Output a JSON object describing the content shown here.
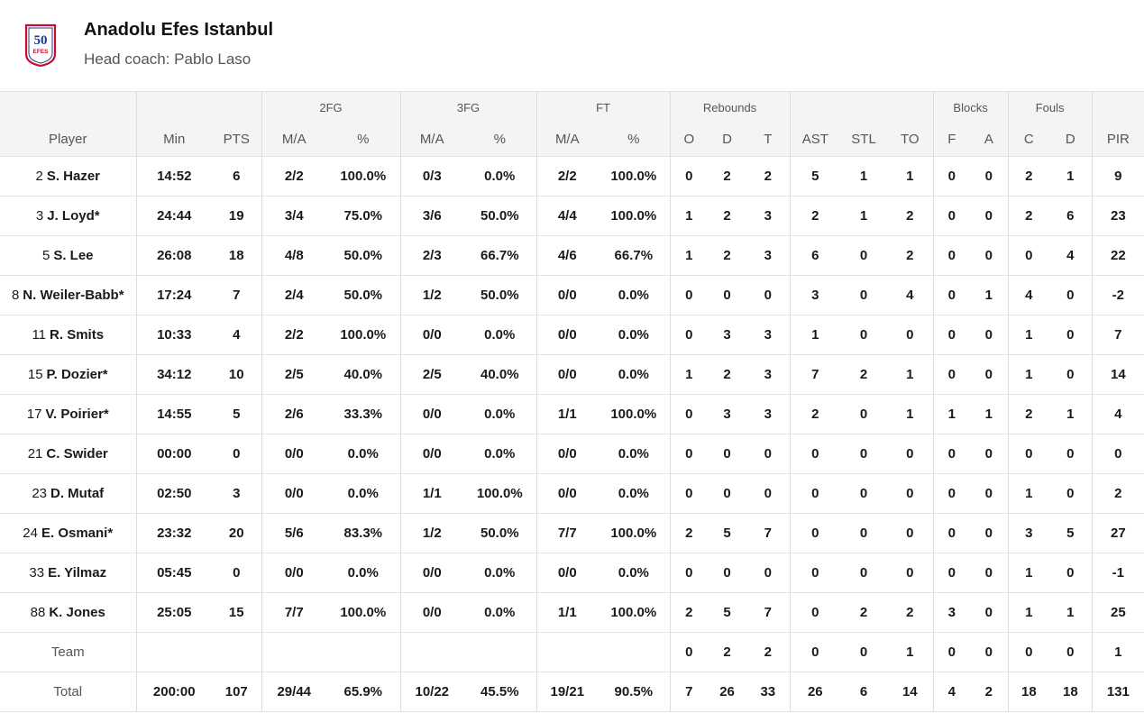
{
  "team": {
    "name": "Anadolu Efes Istanbul",
    "coach": "Head coach: Pablo Laso",
    "logo_text_top": "50",
    "logo_text_bottom": "EFES"
  },
  "groups": {
    "fg2": "2FG",
    "fg3": "3FG",
    "ft": "FT",
    "rebounds": "Rebounds",
    "blocks": "Blocks",
    "fouls": "Fouls"
  },
  "columns": [
    "Player",
    "Min",
    "PTS",
    "M/A",
    "%",
    "M/A",
    "%",
    "M/A",
    "%",
    "O",
    "D",
    "T",
    "AST",
    "STL",
    "TO",
    "F",
    "A",
    "C",
    "D",
    "PIR"
  ],
  "players": [
    {
      "num": "2",
      "name": "S. Hazer",
      "stats": [
        "14:52",
        "6",
        "2/2",
        "100.0%",
        "0/3",
        "0.0%",
        "2/2",
        "100.0%",
        "0",
        "2",
        "2",
        "5",
        "1",
        "1",
        "0",
        "0",
        "2",
        "1",
        "9"
      ]
    },
    {
      "num": "3",
      "name": "J. Loyd*",
      "stats": [
        "24:44",
        "19",
        "3/4",
        "75.0%",
        "3/6",
        "50.0%",
        "4/4",
        "100.0%",
        "1",
        "2",
        "3",
        "2",
        "1",
        "2",
        "0",
        "0",
        "2",
        "6",
        "23"
      ]
    },
    {
      "num": "5",
      "name": "S. Lee",
      "stats": [
        "26:08",
        "18",
        "4/8",
        "50.0%",
        "2/3",
        "66.7%",
        "4/6",
        "66.7%",
        "1",
        "2",
        "3",
        "6",
        "0",
        "2",
        "0",
        "0",
        "0",
        "4",
        "22"
      ]
    },
    {
      "num": "8",
      "name": "N. Weiler-Babb*",
      "stats": [
        "17:24",
        "7",
        "2/4",
        "50.0%",
        "1/2",
        "50.0%",
        "0/0",
        "0.0%",
        "0",
        "0",
        "0",
        "3",
        "0",
        "4",
        "0",
        "1",
        "4",
        "0",
        "-2"
      ]
    },
    {
      "num": "11",
      "name": "R. Smits",
      "stats": [
        "10:33",
        "4",
        "2/2",
        "100.0%",
        "0/0",
        "0.0%",
        "0/0",
        "0.0%",
        "0",
        "3",
        "3",
        "1",
        "0",
        "0",
        "0",
        "0",
        "1",
        "0",
        "7"
      ]
    },
    {
      "num": "15",
      "name": "P. Dozier*",
      "stats": [
        "34:12",
        "10",
        "2/5",
        "40.0%",
        "2/5",
        "40.0%",
        "0/0",
        "0.0%",
        "1",
        "2",
        "3",
        "7",
        "2",
        "1",
        "0",
        "0",
        "1",
        "0",
        "14"
      ]
    },
    {
      "num": "17",
      "name": "V. Poirier*",
      "stats": [
        "14:55",
        "5",
        "2/6",
        "33.3%",
        "0/0",
        "0.0%",
        "1/1",
        "100.0%",
        "0",
        "3",
        "3",
        "2",
        "0",
        "1",
        "1",
        "1",
        "2",
        "1",
        "4"
      ]
    },
    {
      "num": "21",
      "name": "C. Swider",
      "stats": [
        "00:00",
        "0",
        "0/0",
        "0.0%",
        "0/0",
        "0.0%",
        "0/0",
        "0.0%",
        "0",
        "0",
        "0",
        "0",
        "0",
        "0",
        "0",
        "0",
        "0",
        "0",
        "0"
      ]
    },
    {
      "num": "23",
      "name": "D. Mutaf",
      "stats": [
        "02:50",
        "3",
        "0/0",
        "0.0%",
        "1/1",
        "100.0%",
        "0/0",
        "0.0%",
        "0",
        "0",
        "0",
        "0",
        "0",
        "0",
        "0",
        "0",
        "1",
        "0",
        "2"
      ]
    },
    {
      "num": "24",
      "name": "E. Osmani*",
      "stats": [
        "23:32",
        "20",
        "5/6",
        "83.3%",
        "1/2",
        "50.0%",
        "7/7",
        "100.0%",
        "2",
        "5",
        "7",
        "0",
        "0",
        "0",
        "0",
        "0",
        "3",
        "5",
        "27"
      ]
    },
    {
      "num": "33",
      "name": "E. Yilmaz",
      "stats": [
        "05:45",
        "0",
        "0/0",
        "0.0%",
        "0/0",
        "0.0%",
        "0/0",
        "0.0%",
        "0",
        "0",
        "0",
        "0",
        "0",
        "0",
        "0",
        "0",
        "1",
        "0",
        "-1"
      ]
    },
    {
      "num": "88",
      "name": "K. Jones",
      "stats": [
        "25:05",
        "15",
        "7/7",
        "100.0%",
        "0/0",
        "0.0%",
        "1/1",
        "100.0%",
        "2",
        "5",
        "7",
        "0",
        "2",
        "2",
        "3",
        "0",
        "1",
        "1",
        "25"
      ]
    }
  ],
  "team_row": {
    "label": "Team",
    "stats": [
      "",
      "",
      "",
      "",
      "",
      "",
      "",
      "",
      "0",
      "2",
      "2",
      "0",
      "0",
      "1",
      "0",
      "0",
      "0",
      "0",
      "1"
    ]
  },
  "total_row": {
    "label": "Total",
    "stats": [
      "200:00",
      "107",
      "29/44",
      "65.9%",
      "10/22",
      "45.5%",
      "19/21",
      "90.5%",
      "7",
      "26",
      "33",
      "26",
      "6",
      "14",
      "4",
      "2",
      "18",
      "18",
      "131"
    ]
  },
  "colors": {
    "header_bg": "#f4f4f4",
    "logo_red": "#c8102e",
    "logo_navy": "#1b3a8c"
  }
}
